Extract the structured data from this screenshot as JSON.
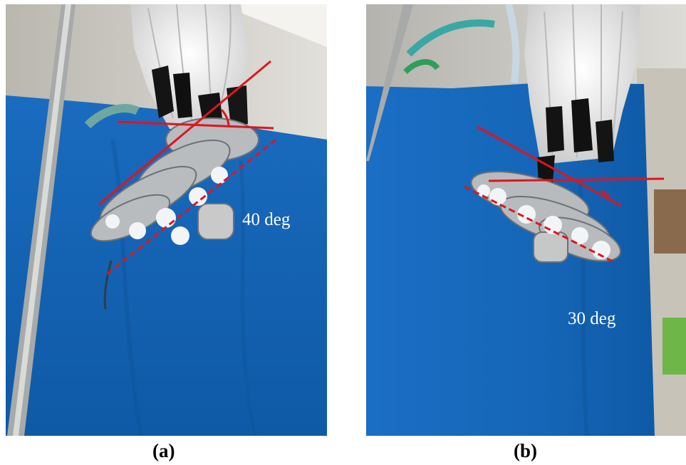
{
  "panels": [
    {
      "angle_label": "40 deg",
      "caption": "(a)"
    },
    {
      "angle_label": "30 deg",
      "caption": "(b)"
    }
  ],
  "colors": {
    "background_cloth": "#1464b4",
    "annotation_lines": "#e0141e",
    "robot_fingers": "#b4b8bc",
    "tubes": "#e8e8e6",
    "wall": "#c9c8c2",
    "label_text": "#ffffff"
  }
}
